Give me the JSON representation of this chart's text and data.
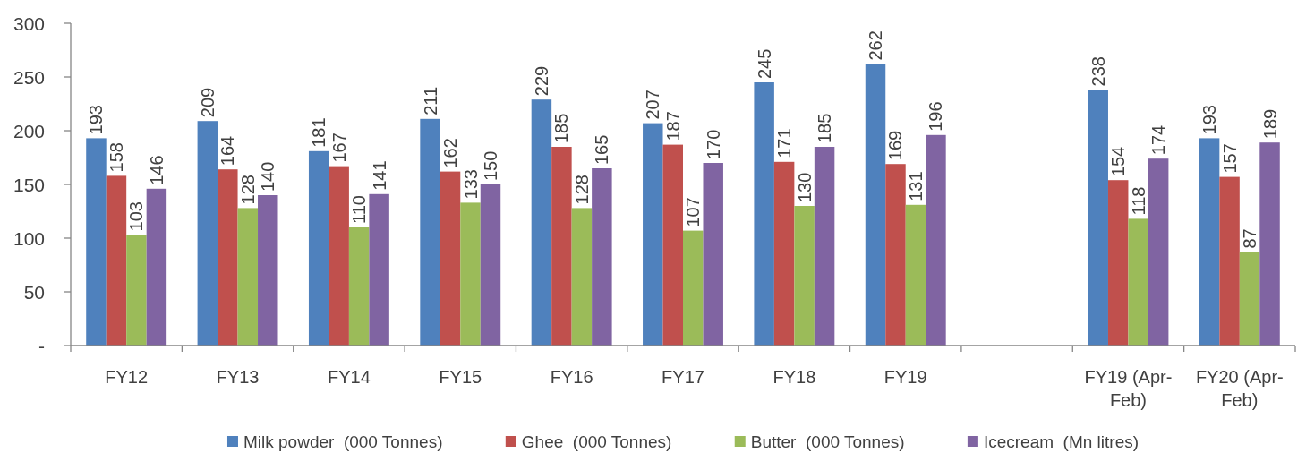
{
  "chart_data": {
    "type": "bar",
    "categories": [
      "FY12",
      "FY13",
      "FY14",
      "FY15",
      "FY16",
      "FY17",
      "FY18",
      "FY19",
      null,
      "FY19 (Apr-Feb)",
      "FY20 (Apr-Feb)"
    ],
    "series": [
      {
        "name": "Milk powder  (000 Tonnes)",
        "color": "#4f81bd",
        "values": [
          193,
          209,
          181,
          211,
          229,
          207,
          245,
          262,
          null,
          238,
          193
        ]
      },
      {
        "name": "Ghee  (000 Tonnes)",
        "color": "#c0504d",
        "values": [
          158,
          164,
          167,
          162,
          185,
          187,
          171,
          169,
          null,
          154,
          157
        ]
      },
      {
        "name": "Butter  (000 Tonnes)",
        "color": "#9bbb59",
        "values": [
          103,
          128,
          110,
          133,
          128,
          107,
          130,
          131,
          null,
          118,
          87
        ]
      },
      {
        "name": "Icecream  (Mn litres)",
        "color": "#8064a2",
        "values": [
          146,
          140,
          141,
          150,
          165,
          170,
          185,
          196,
          null,
          174,
          189
        ]
      }
    ],
    "ylim": [
      0,
      300
    ],
    "yticks": [
      {
        "value": 0,
        "label": "-"
      },
      50,
      100,
      150,
      200,
      250,
      300
    ],
    "data_labels": true,
    "legend": "bottom"
  }
}
